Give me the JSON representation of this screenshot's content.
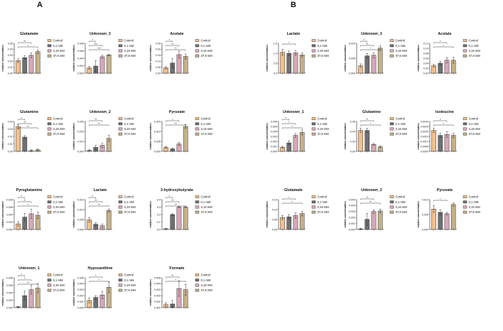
{
  "panels": [
    "A",
    "B"
  ],
  "colors": [
    "#f4c08c",
    "#707070",
    "#d8a8b8",
    "#c4b08a"
  ],
  "chart_data": [
    {
      "panel": "A",
      "type": "bar",
      "title": "Glutamate",
      "ylabel": "relative concentration",
      "categories": [
        "Control",
        "0,1 mM",
        "3,19 mM",
        "37,8 mM"
      ],
      "values": [
        0.021,
        0.026,
        0.03,
        0.036
      ],
      "errors": [
        0.003,
        0.003,
        0.004,
        0.003
      ],
      "ylim": [
        0,
        0.05
      ],
      "ticks": [
        "0.00",
        "0.01",
        "0.02",
        "0.03",
        "0.04",
        "0.05"
      ],
      "sig": [
        "**",
        "*"
      ]
    },
    {
      "panel": "A",
      "type": "bar",
      "title": "Unknown_3",
      "ylabel": "relative concentration",
      "categories": [
        "Control",
        "0,1 mM",
        "3,19 mM",
        "37,8 mM"
      ],
      "values": [
        0.0014,
        0.0019,
        0.0044,
        0.0049
      ],
      "errors": [
        0.0004,
        0.0015,
        0.0004,
        0.0002
      ],
      "ylim": [
        0,
        0.008
      ],
      "ticks": [
        "0.000",
        "0.002",
        "0.004",
        "0.006",
        "0.008"
      ],
      "sig": [
        "*",
        "***",
        "***"
      ]
    },
    {
      "panel": "A",
      "type": "bar",
      "title": "Acetate",
      "ylabel": "relative concentration",
      "categories": [
        "Control",
        "0,1 mM",
        "3,19 mM",
        "37,8 mM"
      ],
      "values": [
        0.045,
        0.085,
        0.155,
        0.14
      ],
      "errors": [
        0.01,
        0.04,
        0.03,
        0.02
      ],
      "ylim": [
        0,
        0.25
      ],
      "ticks": [
        "0.00",
        "0.05",
        "0.10",
        "0.15",
        "0.20",
        "0.25"
      ],
      "sig": [
        "*",
        "**",
        "**"
      ]
    },
    {
      "panel": "A",
      "type": "bar",
      "title": "Glutamine",
      "ylabel": "relative concentration",
      "categories": [
        "Control",
        "0,1 mM",
        "3,19 mM",
        "37,8 mM"
      ],
      "values": [
        0.033,
        0.019,
        0.001,
        0.002
      ],
      "errors": [
        0.003,
        0.002,
        0.001,
        0.001
      ],
      "ylim": [
        0,
        0.04
      ],
      "ticks": [
        "0.00",
        "0.01",
        "0.02",
        "0.03",
        "0.04"
      ],
      "sig": [
        "*",
        "**",
        "**"
      ]
    },
    {
      "panel": "A",
      "type": "bar",
      "title": "Unknown_2",
      "ylabel": "relative concentration",
      "categories": [
        "Control",
        "0,1 mM",
        "3,19 mM",
        "37,8 mM"
      ],
      "values": [
        0.001,
        0.004,
        0.006,
        0.013
      ],
      "errors": [
        0.0005,
        0.002,
        0.002,
        0.003
      ],
      "ylim": [
        0,
        0.03
      ],
      "ticks": [
        "0.000",
        "0.010",
        "0.020",
        "0.030"
      ],
      "sig": [
        "**",
        "**"
      ]
    },
    {
      "panel": "A",
      "type": "bar",
      "title": "Pyruvate",
      "ylabel": "relative concentration",
      "categories": [
        "Control",
        "0,1 mM",
        "3,19 mM",
        "37,8 mM"
      ],
      "values": [
        0.002,
        0.0012,
        0.0037,
        0.0125
      ],
      "errors": [
        0.0005,
        0.0004,
        0.0008,
        0.001
      ],
      "ylim": [
        0,
        0.015
      ],
      "ticks": [
        "0.000",
        "0.005",
        "0.010",
        "0.015"
      ],
      "sig": [
        "*",
        "**"
      ]
    },
    {
      "panel": "A",
      "type": "bar",
      "title": "Pyroglutamine",
      "ylabel": "relative concentration",
      "categories": [
        "Control",
        "0,1 mM",
        "3,19 mM",
        "37,8 mM"
      ],
      "values": [
        0.0015,
        0.0033,
        0.0042,
        0.0038
      ],
      "errors": [
        0.0006,
        0.001,
        0.0012,
        0.0009
      ],
      "ylim": [
        0,
        0.008
      ],
      "ticks": [
        "0.000",
        "0.002",
        "0.004",
        "0.006",
        "0.008"
      ],
      "sig": [
        "*",
        "**",
        "*"
      ]
    },
    {
      "panel": "A",
      "type": "bar",
      "title": "Lactate",
      "ylabel": "relative concentration",
      "categories": [
        "Control",
        "0,1 mM",
        "3,19 mM",
        "37,8 mM"
      ],
      "values": [
        0.0048,
        0.0026,
        0.0019,
        0.0095
      ],
      "errors": [
        0.0012,
        0.0008,
        0.0009,
        0.0008
      ],
      "ylim": [
        0,
        0.015
      ],
      "ticks": [
        "0.000",
        "0.005",
        "0.010",
        "0.015"
      ],
      "sig": [
        "*",
        "**",
        "**"
      ]
    },
    {
      "panel": "A",
      "type": "bar",
      "title": "3-hydroxybutyrate",
      "ylabel": "relative concentration",
      "categories": [
        "Control",
        "0,1 mM",
        "3,19 mM",
        "37,8 mM"
      ],
      "values": [
        0.01,
        0.2,
        0.3,
        0.3
      ],
      "errors": [
        0.005,
        0.01,
        0.01,
        0.01
      ],
      "ylim": [
        0,
        0.4
      ],
      "ticks": [
        "0.0",
        "0.1",
        "0.2",
        "0.3",
        "0.4"
      ],
      "sig": [
        "*",
        "**",
        "**"
      ]
    },
    {
      "panel": "A",
      "type": "bar",
      "title": "Unknown_1",
      "ylabel": "relative concentration",
      "categories": [
        "Control",
        "0,1 mM",
        "3,19 mM",
        "37,8 mM"
      ],
      "values": [
        0.0002,
        0.0032,
        0.0048,
        0.0052
      ],
      "errors": [
        0.0001,
        0.0012,
        0.0012,
        0.0012
      ],
      "ylim": [
        0,
        0.008
      ],
      "ticks": [
        "0.000",
        "0.002",
        "0.004",
        "0.006",
        "0.008"
      ],
      "sig": [
        "*",
        "*",
        "**"
      ]
    },
    {
      "panel": "A",
      "type": "bar",
      "title": "Hypoxanthine",
      "ylabel": "relative concentration",
      "categories": [
        "Control",
        "0,1 mM",
        "3,19 mM",
        "37,8 mM"
      ],
      "values": [
        0.0012,
        0.0017,
        0.0021,
        0.0034
      ],
      "errors": [
        0.0004,
        0.0003,
        0.0006,
        0.0009
      ],
      "ylim": [
        0,
        0.005
      ],
      "ticks": [
        "0.000",
        "0.001",
        "0.002",
        "0.003",
        "0.004",
        "0.005"
      ],
      "sig": [
        "*",
        "*"
      ]
    },
    {
      "panel": "A",
      "type": "bar",
      "title": "Formate",
      "ylabel": "relative concentration",
      "categories": [
        "Control",
        "0,1 mM",
        "3,19 mM",
        "37,8 mM"
      ],
      "values": [
        0.0005,
        0.0006,
        0.0032,
        0.003
      ],
      "errors": [
        0.0003,
        0.0006,
        0.0013,
        0.0009
      ],
      "ylim": [
        0,
        0.005
      ],
      "ticks": [
        "0.000",
        "0.001",
        "0.002",
        "0.003",
        "0.004",
        "0.005"
      ],
      "sig": [
        "**",
        "*"
      ]
    },
    {
      "panel": "B",
      "type": "bar",
      "title": "Lactate",
      "ylabel": "relative concentration",
      "categories": [
        "Control",
        "0,1 mM",
        "3,19 mM",
        "37,8 mM"
      ],
      "values": [
        1.05,
        1.0,
        1.02,
        0.92
      ],
      "errors": [
        0.15,
        0.12,
        0.12,
        0.1
      ],
      "ylim": [
        0,
        1.5
      ],
      "ticks": [
        "0.0",
        "0.5",
        "1.0",
        "1.5"
      ],
      "sig": [
        "*"
      ]
    },
    {
      "panel": "B",
      "type": "bar",
      "title": "Unknown_3",
      "ylabel": "relative concentration",
      "categories": [
        "Control",
        "0,1 mM",
        "3,19 mM",
        "37,8 mM"
      ],
      "values": [
        0.0025,
        0.0058,
        0.006,
        0.0084
      ],
      "errors": [
        0.0006,
        0.0008,
        0.0009,
        0.0008
      ],
      "ylim": [
        0,
        0.01
      ],
      "ticks": [
        "0.000",
        "0.005",
        "0.010"
      ],
      "sig": [
        "*",
        "**",
        "*"
      ]
    },
    {
      "panel": "B",
      "type": "bar",
      "title": "Acetate",
      "ylabel": "relative concentration",
      "categories": [
        "Control",
        "0,1 mM",
        "3,19 mM",
        "37,8 mM"
      ],
      "values": [
        0.03,
        0.04,
        0.052,
        0.052
      ],
      "errors": [
        0.006,
        0.008,
        0.01,
        0.012
      ],
      "ylim": [
        0,
        0.12
      ],
      "ticks": [
        "0.00",
        "0.02",
        "0.04",
        "0.06",
        "0.08",
        "0.10",
        "0.12"
      ],
      "sig": [
        "*",
        "*"
      ]
    },
    {
      "panel": "B",
      "type": "bar",
      "title": "Unknown_1",
      "ylabel": "relative concentration",
      "categories": [
        "Control",
        "0,1 mM",
        "3,19 mM",
        "37,8 mM"
      ],
      "values": [
        0.0008,
        0.0017,
        0.0032,
        0.0038
      ],
      "errors": [
        0.0002,
        0.0004,
        0.0004,
        0.0005
      ],
      "ylim": [
        0,
        0.006
      ],
      "ticks": [
        "0.000",
        "0.001",
        "0.002",
        "0.003",
        "0.004",
        "0.005",
        "0.006"
      ],
      "sig": [
        "*",
        "*",
        "*"
      ]
    },
    {
      "panel": "B",
      "type": "bar",
      "title": "Glutamine",
      "ylabel": "relative concentration",
      "categories": [
        "Control",
        "0,1 mM",
        "3,19 mM",
        "37,8 mM"
      ],
      "values": [
        0.042,
        0.042,
        0.014,
        0.009
      ],
      "errors": [
        0.004,
        0.004,
        0.002,
        0.002
      ],
      "ylim": [
        0,
        0.06
      ],
      "ticks": [
        "0.00",
        "0.02",
        "0.04",
        "0.06"
      ],
      "sig": [
        "**",
        "*"
      ]
    },
    {
      "panel": "B",
      "type": "bar",
      "title": "Isoleucine",
      "ylabel": "relative concentration",
      "categories": [
        "Control",
        "0,1 mM",
        "3,19 mM",
        "37,8 mM"
      ],
      "values": [
        0.0021,
        0.0016,
        0.0017,
        0.0016
      ],
      "errors": [
        0.0002,
        0.0002,
        0.0003,
        0.0002
      ],
      "ylim": [
        0,
        0.003
      ],
      "ticks": [
        "0.0000",
        "0.0005",
        "0.0010",
        "0.0015",
        "0.0020",
        "0.0025",
        "0.0030"
      ],
      "sig": [
        "*",
        "*"
      ]
    },
    {
      "panel": "B",
      "type": "bar",
      "title": "Glutamate",
      "ylabel": "relative concentration",
      "categories": [
        "Control",
        "0,1 mM",
        "3,19 mM",
        "37,8 mM"
      ],
      "values": [
        0.06,
        0.063,
        0.07,
        0.08
      ],
      "errors": [
        0.01,
        0.012,
        0.013,
        0.012
      ],
      "ylim": [
        0,
        0.15
      ],
      "ticks": [
        "0.00",
        "0.05",
        "0.10",
        "0.15"
      ],
      "sig": [
        "*",
        "*"
      ]
    },
    {
      "panel": "B",
      "type": "bar",
      "title": "Unknown_2",
      "ylabel": "relative concentration",
      "categories": [
        "Control",
        "0,1 mM",
        "3,19 mM",
        "37,8 mM"
      ],
      "values": [
        0.0001,
        0.0017,
        0.003,
        0.0031
      ],
      "errors": [
        0.0001,
        0.001,
        0.0003,
        0.0003
      ],
      "ylim": [
        0,
        0.005
      ],
      "ticks": [
        "0.000",
        "0.001",
        "0.002",
        "0.003",
        "0.004",
        "0.005"
      ],
      "sig": [
        "**",
        "**"
      ]
    },
    {
      "panel": "B",
      "type": "bar",
      "title": "Pyruvate",
      "ylabel": "relative concentration",
      "categories": [
        "Control",
        "0,1 mM",
        "3,19 mM",
        "37,8 mM"
      ],
      "values": [
        0.0075,
        0.0063,
        0.0058,
        0.0092
      ],
      "errors": [
        0.0012,
        0.001,
        0.0005,
        0.0006
      ],
      "ylim": [
        0,
        0.011
      ],
      "ticks": [
        "0.000",
        "0.005",
        "0.010"
      ],
      "sig": [
        "*"
      ]
    }
  ]
}
